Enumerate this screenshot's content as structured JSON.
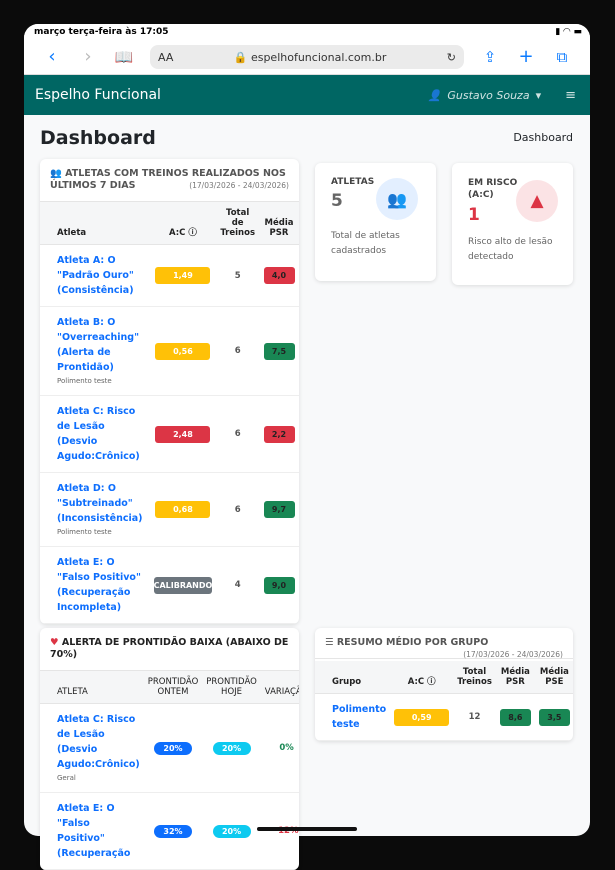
{
  "status_bar": {
    "time": "março terça-feira às 17:05"
  },
  "browser": {
    "text_size": "AA",
    "url": "espelhofuncional.com.br"
  },
  "navbar": {
    "brand": "Espelho Funcional",
    "user": "Gustavo Souza"
  },
  "page": {
    "title": "Dashboard",
    "breadcrumb": "Dashboard"
  },
  "athletes_card": {
    "title": "ATLETAS COM TREINOS REALIZADOS NOS ÚLTIMOS 7 DIAS",
    "range": "(17/03/2026 - 24/03/2026)",
    "headers": [
      "Atleta",
      "A:C",
      "Total de Treinos",
      "Média PSR"
    ],
    "rows": [
      {
        "name": "Atleta A: O \"Padrão Ouro\" (Consistência)",
        "sub": "",
        "ac": "1,49",
        "ac_color": "yellow",
        "total": "5",
        "psr": "4,0",
        "psr_color": "red"
      },
      {
        "name": "Atleta B: O \"Overreaching\" (Alerta de Prontidão)",
        "sub": "Polimento teste",
        "ac": "0,56",
        "ac_color": "yellow",
        "total": "6",
        "psr": "7,5",
        "psr_color": "green"
      },
      {
        "name": "Atleta C: Risco de Lesão (Desvio Agudo:Crônico)",
        "sub": "",
        "ac": "2,48",
        "ac_color": "red",
        "total": "6",
        "psr": "2,2",
        "psr_color": "red"
      },
      {
        "name": "Atleta D: O \"Subtreinado\" (Inconsistência)",
        "sub": "Polimento teste",
        "ac": "0,68",
        "ac_color": "yellow",
        "total": "6",
        "psr": "9,7",
        "psr_color": "green"
      },
      {
        "name": "Atleta E: O \"Falso Positivo\" (Recuperação Incompleta)",
        "sub": "",
        "ac": "CALIBRANDO",
        "ac_color": "gray",
        "total": "4",
        "psr": "9,0",
        "psr_color": "green"
      }
    ]
  },
  "stat_athletes": {
    "label": "ATLETAS",
    "value": "5",
    "desc": "Total de atletas cadastrados"
  },
  "stat_risk": {
    "label": "EM RISCO (A:C)",
    "value": "1",
    "desc": "Risco alto de lesão detectado"
  },
  "alert_card": {
    "title": "ALERTA DE PRONTIDÃO BAIXA (ABAIXO DE 70%)",
    "headers": [
      "ATLETA",
      "PRONTIDÃO ONTEM",
      "PRONTIDÃO HOJE",
      "VARIAÇÃO"
    ],
    "rows": [
      {
        "name": "Atleta C: Risco de Lesão (Desvio Agudo:Crônico)",
        "sub": "Geral",
        "yesterday": "20%",
        "today": "20%",
        "variation": "0%"
      },
      {
        "name": "Atleta E: O \"Falso Positivo\" (Recuperação",
        "sub": "",
        "yesterday": "32%",
        "today": "20%",
        "variation": "-12%"
      }
    ]
  },
  "group_card": {
    "title": "RESUMO MÉDIO POR GRUPO",
    "range": "(17/03/2026 - 24/03/2026)",
    "headers": [
      "Grupo",
      "A:C",
      "Total Treinos",
      "Média PSR",
      "Média PSE"
    ],
    "rows": [
      {
        "group": "Polimento teste",
        "ac": "0,59",
        "total": "12",
        "psr": "8,6",
        "pse": "3,5"
      }
    ]
  },
  "colors": {
    "navbar": "#006663",
    "yellow": "#ffc107",
    "red": "#dc3545",
    "green": "#198754",
    "gray": "#6c757d",
    "link": "#0d6efd"
  }
}
